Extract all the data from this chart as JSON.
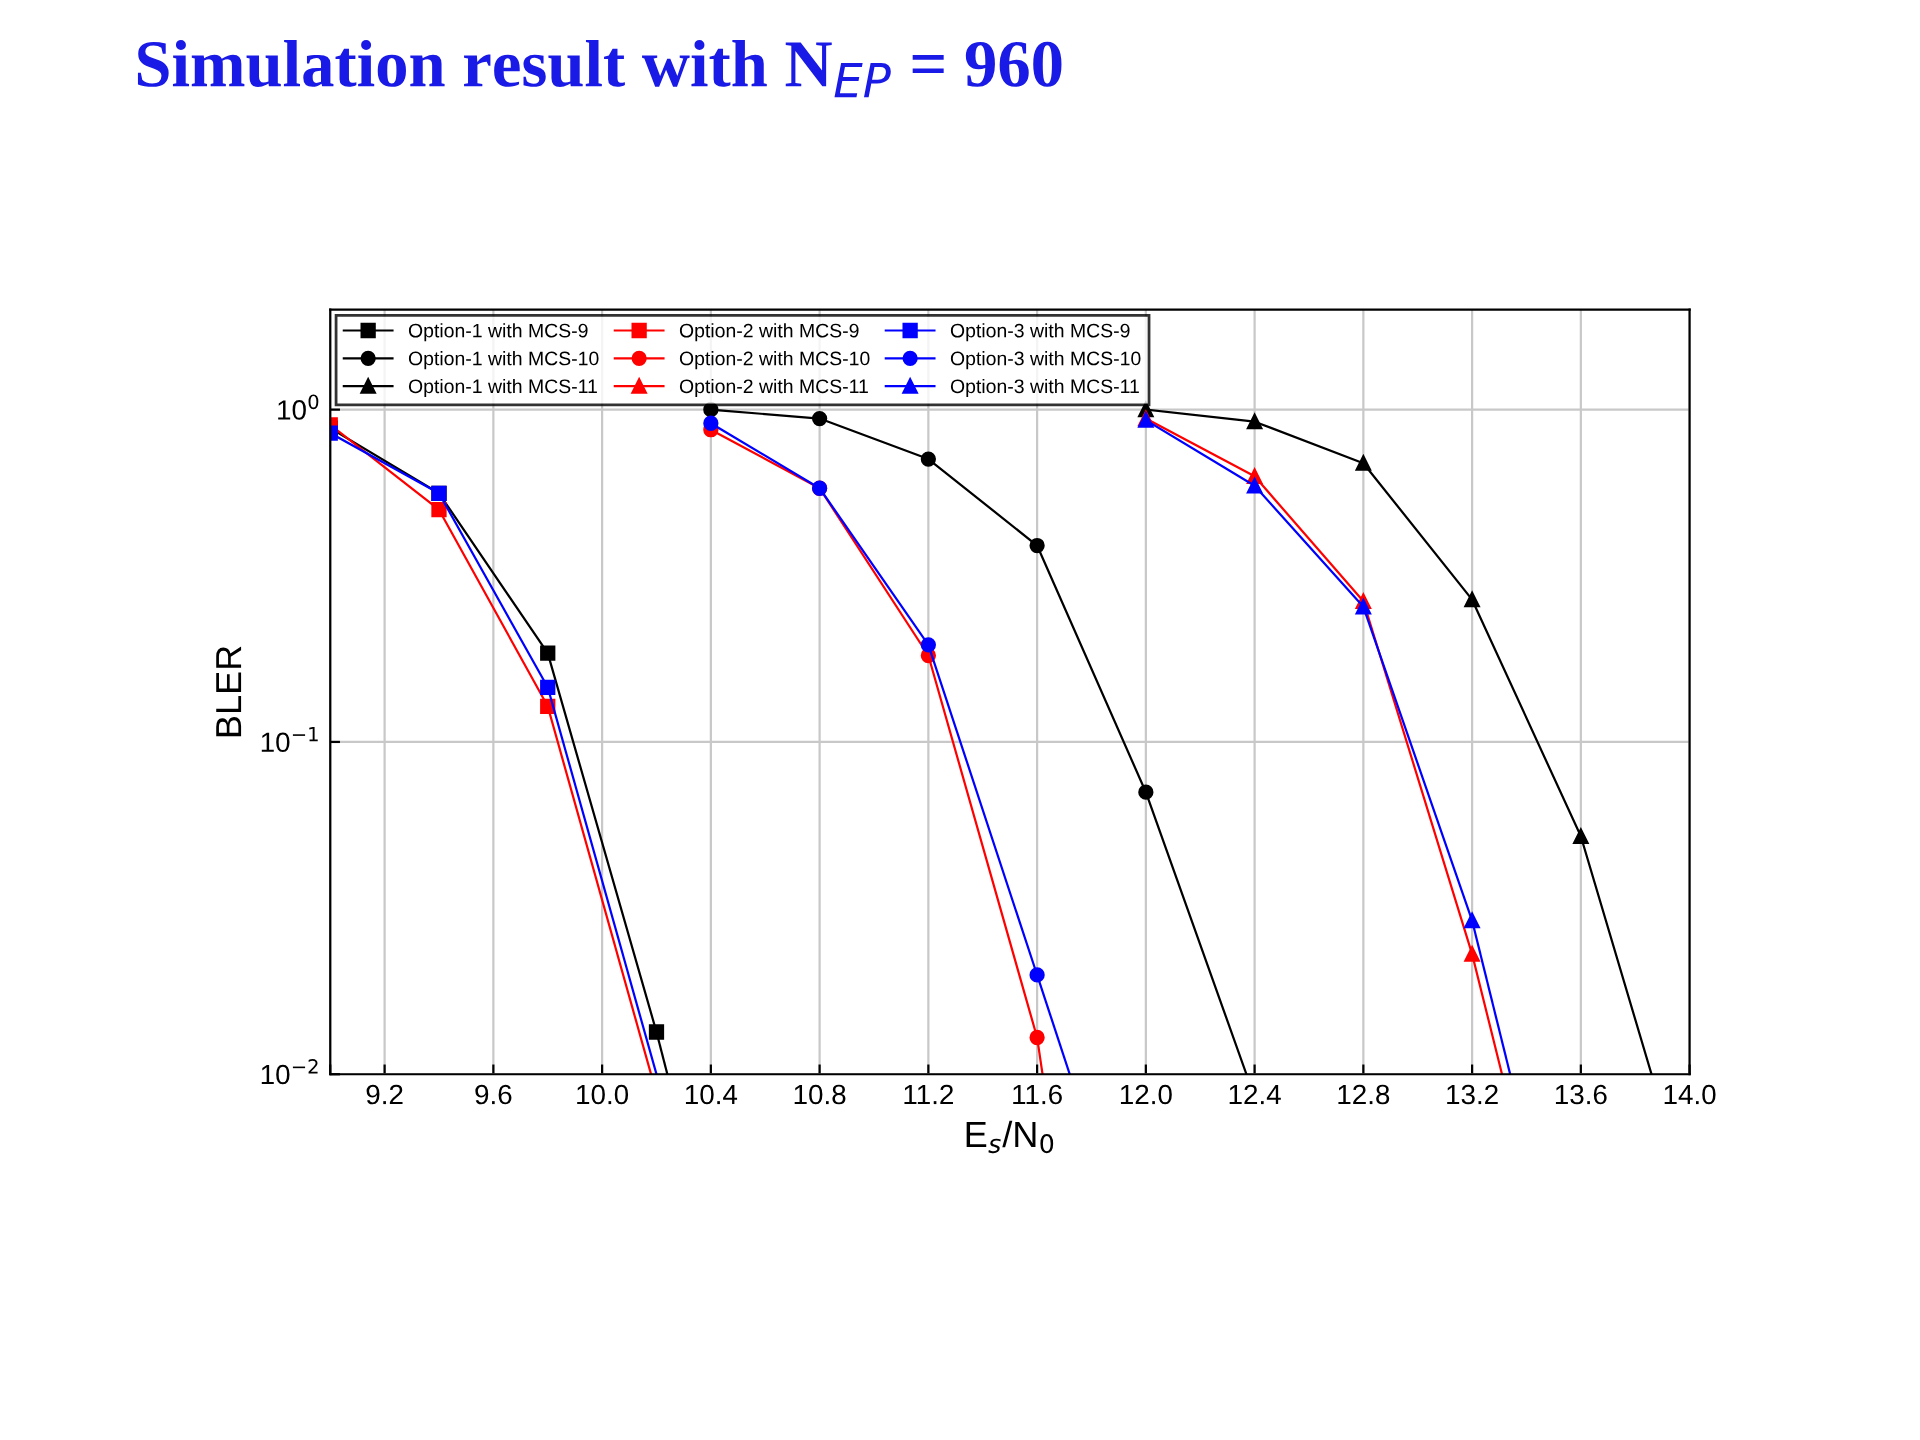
{
  "chart_data": {
    "type": "line",
    "title": "Simulation result with N$_{EP}$ = 960",
    "xlabel": "E$_{s}$/N$_{0}$",
    "ylabel": "BLER",
    "log": "y",
    "xlim": [
      9.0,
      14.0
    ],
    "xticks": [
      {
        "value": 9.0,
        "label": null
      },
      {
        "value": 9.2,
        "label": "9.2"
      },
      {
        "value": 9.6,
        "label": "9.6"
      },
      {
        "value": 10.0,
        "label": "10.0"
      },
      {
        "value": 10.4,
        "label": "10.4"
      },
      {
        "value": 10.8,
        "label": "10.8"
      },
      {
        "value": 11.2,
        "label": "11.2"
      },
      {
        "value": 11.6,
        "label": "11.6"
      },
      {
        "value": 12.0,
        "label": "12.0"
      },
      {
        "value": 12.4,
        "label": "12.4"
      },
      {
        "value": 12.8,
        "label": "12.8"
      },
      {
        "value": 13.2,
        "label": "13.2"
      },
      {
        "value": 13.6,
        "label": "13.6"
      },
      {
        "value": 14.0,
        "label": "14.0"
      }
    ],
    "ylim": [
      0.01,
      2
    ],
    "yticks": [
      {
        "value": 0.01,
        "label": "10$^{−2}$"
      },
      {
        "value": 0.1,
        "label": "10$^{−1}$"
      },
      {
        "value": 1,
        "label": "10$^{0}$"
      }
    ],
    "grid": true,
    "legend": "top left",
    "line_style": "solid",
    "series": [
      {
        "name": "Option-1 with MCS-9",
        "color": "#000000",
        "marker": "square",
        "x": [
          9.0,
          9.4,
          9.8,
          10.2
        ],
        "values": [
          0.88,
          0.56,
          0.185,
          0.0134
        ]
      },
      {
        "name": "Option-1 with MCS-10",
        "color": "#000000",
        "marker": "circle",
        "x": [
          10.4,
          10.8,
          11.2,
          11.6,
          12.0
        ],
        "values": [
          1.0,
          0.94,
          0.71,
          0.39,
          0.0706
        ]
      },
      {
        "name": "Option-1 with MCS-11",
        "color": "#000000",
        "marker": "triangle",
        "x": [
          12.0,
          12.4,
          12.8,
          13.2,
          13.6
        ],
        "values": [
          1.0,
          0.92,
          0.69,
          0.268,
          0.052
        ]
      },
      {
        "name": "Option-2 with MCS-9",
        "color": "#ff0000",
        "marker": "square",
        "x": [
          9.0,
          9.4,
          9.8
        ],
        "values": [
          0.9,
          0.5,
          0.128
        ]
      },
      {
        "name": "Option-2 with MCS-10",
        "color": "#ff0000",
        "marker": "circle",
        "x": [
          10.4,
          10.8,
          11.2,
          11.6
        ],
        "values": [
          0.87,
          0.58,
          0.182,
          0.0129
        ]
      },
      {
        "name": "Option-2 with MCS-11",
        "color": "#ff0000",
        "marker": "triangle",
        "x": [
          12.0,
          12.4,
          12.8,
          13.2
        ],
        "values": [
          0.94,
          0.63,
          0.265,
          0.023
        ]
      },
      {
        "name": "Option-3 with MCS-9",
        "color": "#0000ff",
        "marker": "square",
        "x": [
          9.0,
          9.4,
          9.8
        ],
        "values": [
          0.85,
          0.56,
          0.146
        ]
      },
      {
        "name": "Option-3 with MCS-10",
        "color": "#0000ff",
        "marker": "circle",
        "x": [
          10.4,
          10.8,
          11.2,
          11.6
        ],
        "values": [
          0.91,
          0.58,
          0.196,
          0.0199
        ]
      },
      {
        "name": "Option-3 with MCS-11",
        "color": "#0000ff",
        "marker": "triangle",
        "x": [
          12.0,
          12.4,
          12.8,
          13.2
        ],
        "values": [
          0.93,
          0.59,
          0.255,
          0.029
        ]
      },
      {
        "color": "#000000",
        "marker": "none",
        "x": [
          10.2,
          10.24
        ],
        "values": [
          0.0134,
          0.01
        ]
      },
      {
        "color": "#000000",
        "marker": "none",
        "x": [
          12.0,
          12.37
        ],
        "values": [
          0.0706,
          0.01
        ]
      },
      {
        "color": "#000000",
        "marker": "none",
        "x": [
          13.6,
          13.86
        ],
        "values": [
          0.052,
          0.01
        ]
      },
      {
        "color": "#ff0000",
        "marker": "none",
        "x": [
          9.8,
          10.18
        ],
        "values": [
          0.128,
          0.01
        ]
      },
      {
        "color": "#ff0000",
        "marker": "none",
        "x": [
          11.6,
          11.62
        ],
        "values": [
          0.0129,
          0.01
        ]
      },
      {
        "color": "#ff0000",
        "marker": "none",
        "x": [
          13.2,
          13.31
        ],
        "values": [
          0.023,
          0.01
        ]
      },
      {
        "color": "#0000ff",
        "marker": "none",
        "x": [
          9.8,
          10.2
        ],
        "values": [
          0.146,
          0.01
        ]
      },
      {
        "color": "#0000ff",
        "marker": "none",
        "x": [
          11.6,
          11.72
        ],
        "values": [
          0.0199,
          0.01
        ]
      },
      {
        "color": "#0000ff",
        "marker": "none",
        "x": [
          13.2,
          13.34
        ],
        "values": [
          0.029,
          0.01
        ]
      }
    ]
  }
}
